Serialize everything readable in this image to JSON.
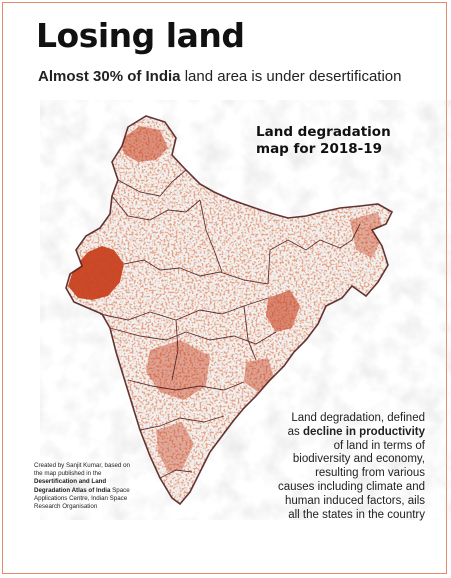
{
  "header": {
    "title": "Losing land",
    "subtitle_bold": "Almost 30% of India",
    "subtitle_rest": " land area is under desertification"
  },
  "map": {
    "label_line1": "Land degradation",
    "label_line2": "map for 2018-19",
    "colors": {
      "degraded": "#c8401e",
      "land": "#f1f1f1",
      "border": "#4a1414",
      "relief": "#b9b9b9"
    }
  },
  "credit": {
    "prefix": "Created by Sanjit Kumar, based on the map published in the ",
    "atlas": "Desertification and Land Degradation Atlas of India",
    "suffix": " Space Applications Centre, Indian Space Research Organisation"
  },
  "description": {
    "part1": "Land degradation, defined as ",
    "bold": "decline in productivity",
    "part2": " of land in terms of biodiversity and economy, resulting from various causes including climate and human induced factors, ails all the states in the country"
  }
}
